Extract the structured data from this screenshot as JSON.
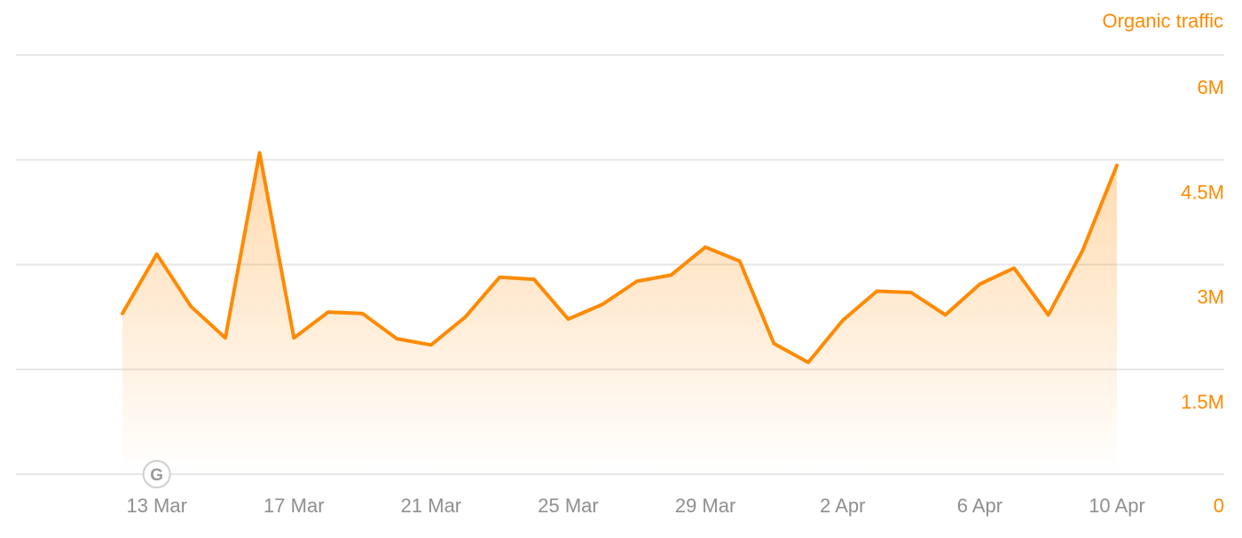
{
  "colors": {
    "accent": "#ff8a00",
    "grid": "#e6e6e6",
    "xtick": "#8f8f8f",
    "marker": "#9a9a9a"
  },
  "marker": {
    "icon": "google-update-icon",
    "label": "G",
    "date": "13 Mar"
  },
  "chart_data": {
    "type": "area",
    "series": [
      {
        "name": "Organic traffic",
        "x": [
          "12 Mar",
          "13 Mar",
          "14 Mar",
          "15 Mar",
          "16 Mar",
          "17 Mar",
          "18 Mar",
          "19 Mar",
          "20 Mar",
          "21 Mar",
          "22 Mar",
          "23 Mar",
          "24 Mar",
          "25 Mar",
          "26 Mar",
          "27 Mar",
          "28 Mar",
          "29 Mar",
          "30 Mar",
          "31 Mar",
          "1 Apr",
          "2 Apr",
          "3 Apr",
          "4 Apr",
          "5 Apr",
          "6 Apr",
          "7 Apr",
          "8 Apr",
          "9 Apr",
          "10 Apr"
        ],
        "values": [
          2300000,
          3150000,
          2400000,
          1950000,
          4600000,
          1950000,
          2320000,
          2300000,
          1940000,
          1850000,
          2250000,
          2820000,
          2790000,
          2220000,
          2430000,
          2760000,
          2850000,
          3250000,
          3050000,
          1870000,
          1600000,
          2200000,
          2620000,
          2600000,
          2280000,
          2720000,
          2950000,
          2280000,
          3200000,
          4420000
        ]
      }
    ],
    "xlabel": "",
    "ylabel": "Organic traffic",
    "x_tick_labels": [
      "13 Mar",
      "17 Mar",
      "21 Mar",
      "25 Mar",
      "29 Mar",
      "2 Apr",
      "6 Apr",
      "10 Apr"
    ],
    "y_ticks": [
      0,
      1500000,
      3000000,
      4500000,
      6000000
    ],
    "y_tick_labels": [
      "0",
      "1.5M",
      "3M",
      "4.5M",
      "6M"
    ],
    "ylim": [
      0,
      6000000
    ],
    "grid": true,
    "legend": "none"
  }
}
